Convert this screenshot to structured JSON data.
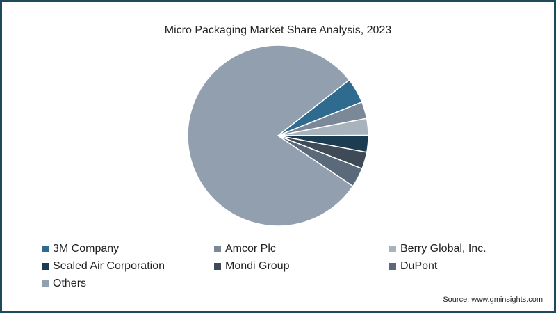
{
  "chart_data": {
    "type": "pie",
    "title": "Micro Packaging Market Share Analysis, 2023",
    "slices": [
      {
        "label": "3M Company",
        "value": 4.5,
        "color": "#2f6b8f"
      },
      {
        "label": "Amcor Plc",
        "value": 3,
        "color": "#7a8898"
      },
      {
        "label": "Berry Global, Inc.",
        "value": 3,
        "color": "#a9b3bd"
      },
      {
        "label": "Sealed Air Corporation",
        "value": 3,
        "color": "#1c3c52"
      },
      {
        "label": "Mondi Group",
        "value": 3,
        "color": "#3f4a57"
      },
      {
        "label": "DuPont",
        "value": 3.5,
        "color": "#5b6a7a"
      },
      {
        "label": "Others",
        "value": 80,
        "color": "#919fae"
      }
    ],
    "legend_position": "bottom"
  },
  "source": "Source: www.gminsights.com"
}
